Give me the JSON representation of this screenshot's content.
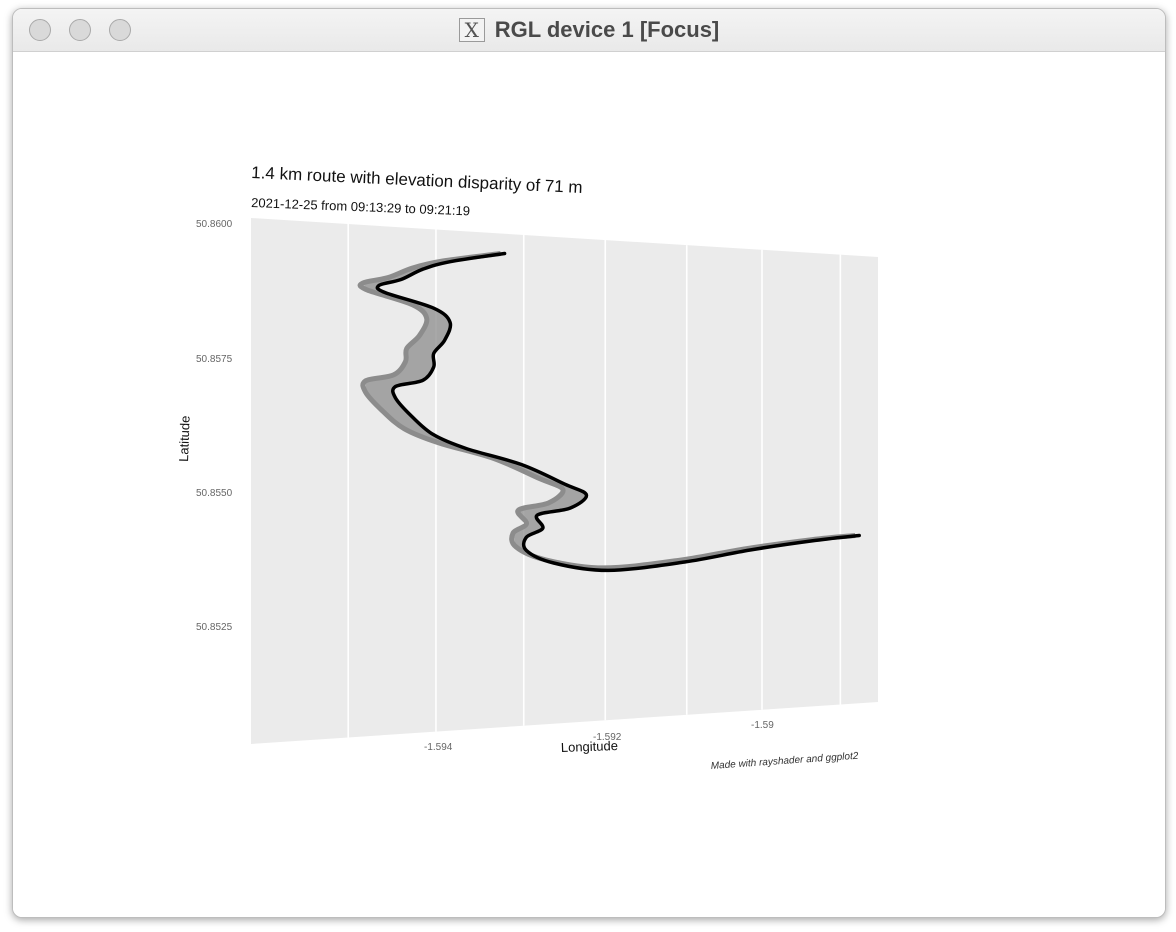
{
  "window": {
    "title": "RGL device 1 [Focus]",
    "app_icon": "x11-icon",
    "controls": [
      "close",
      "minimize",
      "zoom"
    ]
  },
  "chart_data": {
    "type": "line",
    "title": "1.4 km route with elevation disparity of 71 m",
    "subtitle": "2021-12-25 from 09:13:29 to 09:21:19",
    "xlabel": "Longitude",
    "ylabel": "Latitude",
    "caption": "Made with rayshader and ggplot2",
    "x_ticks": [
      "-1.594",
      "-1.592",
      "-1.59"
    ],
    "y_ticks": [
      "50.8600",
      "50.8575",
      "50.8550",
      "50.8525"
    ],
    "grid": true,
    "colors": {
      "panel": "#ebebeb",
      "grid": "#ffffff",
      "route": "#000000",
      "shadow": "#8c8c8c"
    },
    "route": [
      {
        "x": 0.35,
        "y": 0.0
      },
      {
        "x": 0.25,
        "y": 0.025
      },
      {
        "x": 0.2,
        "y": 0.045
      },
      {
        "x": 0.16,
        "y": 0.07
      },
      {
        "x": 0.12,
        "y": 0.085
      },
      {
        "x": 0.13,
        "y": 0.1
      },
      {
        "x": 0.22,
        "y": 0.13
      },
      {
        "x": 0.25,
        "y": 0.16
      },
      {
        "x": 0.24,
        "y": 0.2
      },
      {
        "x": 0.22,
        "y": 0.23
      },
      {
        "x": 0.22,
        "y": 0.26
      },
      {
        "x": 0.2,
        "y": 0.29
      },
      {
        "x": 0.15,
        "y": 0.305
      },
      {
        "x": 0.15,
        "y": 0.33
      },
      {
        "x": 0.18,
        "y": 0.37
      },
      {
        "x": 0.22,
        "y": 0.41
      },
      {
        "x": 0.28,
        "y": 0.44
      },
      {
        "x": 0.38,
        "y": 0.475
      },
      {
        "x": 0.46,
        "y": 0.52
      },
      {
        "x": 0.5,
        "y": 0.545
      },
      {
        "x": 0.47,
        "y": 0.575
      },
      {
        "x": 0.41,
        "y": 0.59
      },
      {
        "x": 0.42,
        "y": 0.62
      },
      {
        "x": 0.39,
        "y": 0.64
      },
      {
        "x": 0.39,
        "y": 0.67
      },
      {
        "x": 0.44,
        "y": 0.7
      },
      {
        "x": 0.54,
        "y": 0.72
      },
      {
        "x": 0.68,
        "y": 0.705
      },
      {
        "x": 0.8,
        "y": 0.68
      },
      {
        "x": 0.92,
        "y": 0.66
      },
      {
        "x": 1.0,
        "y": 0.65
      }
    ]
  }
}
